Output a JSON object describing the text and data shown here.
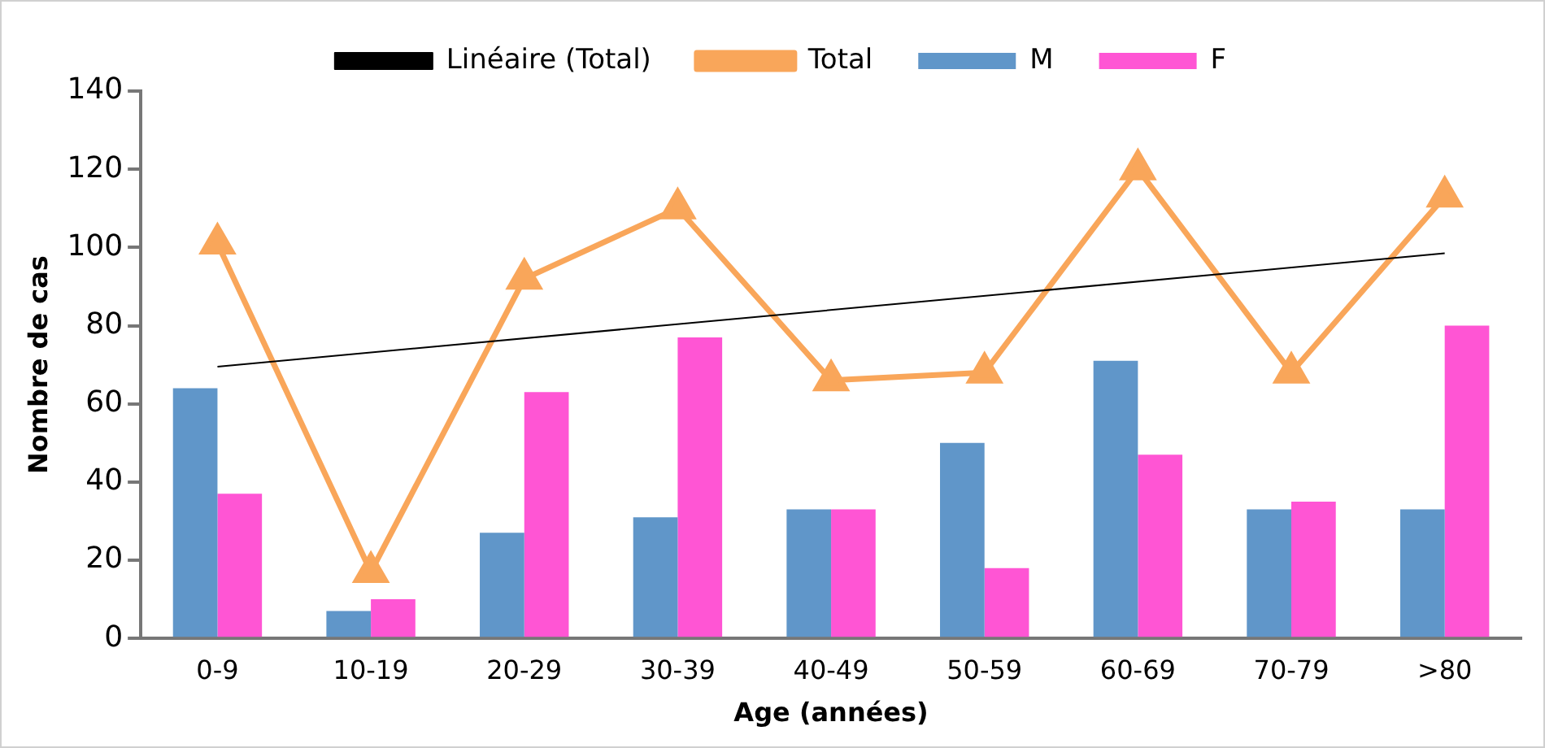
{
  "chart_data": {
    "type": "bar",
    "xlabel": "Age (années)",
    "ylabel": "Nombre de cas",
    "categories": [
      "0-9",
      "10-19",
      "20-29",
      "30-39",
      "40-49",
      "50-59",
      "60-69",
      "70-79",
      ">80"
    ],
    "series": [
      {
        "name": "M",
        "color": "#6096c9",
        "values": [
          64,
          7,
          27,
          31,
          33,
          50,
          71,
          33,
          33
        ]
      },
      {
        "name": "F",
        "color": "#ff55d4",
        "values": [
          37,
          10,
          63,
          77,
          33,
          18,
          47,
          35,
          80
        ]
      },
      {
        "name": "Total",
        "type": "line",
        "color": "#f9a65a",
        "marker": "triangle",
        "values": [
          101,
          17,
          92,
          110,
          66,
          68,
          120,
          68,
          113
        ]
      },
      {
        "name": "Linéaire (Total)",
        "type": "line",
        "color": "#000000",
        "marker": "none",
        "x": [
          "0-9",
          ">80"
        ],
        "values": [
          69.5,
          98.5
        ]
      }
    ],
    "ylim": [
      0,
      140
    ],
    "yticks": [
      0,
      20,
      40,
      60,
      80,
      100,
      120,
      140
    ],
    "grid": false,
    "legend": "top"
  }
}
